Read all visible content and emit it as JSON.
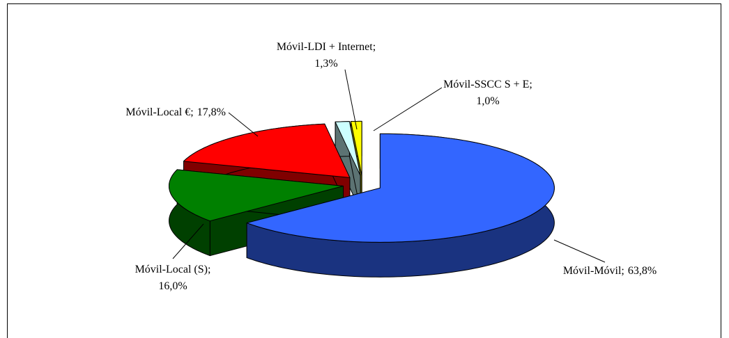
{
  "chart_data": {
    "type": "pie",
    "categories": [
      "Móvil-Móvil;",
      "Móvil-Local (S);",
      "Móvil-Local €;",
      "Móvil-LDI + Internet;",
      "Móvil-SSCC S + E;"
    ],
    "values": [
      63.8,
      16.0,
      17.8,
      1.3,
      1.0
    ],
    "value_labels": [
      "63,8%",
      "16,0%",
      "17,8%",
      "1,3%",
      "1,0%"
    ],
    "colors": [
      "#3366ff",
      "#008000",
      "#ff0000",
      "#ccffff",
      "#ffff00"
    ]
  }
}
